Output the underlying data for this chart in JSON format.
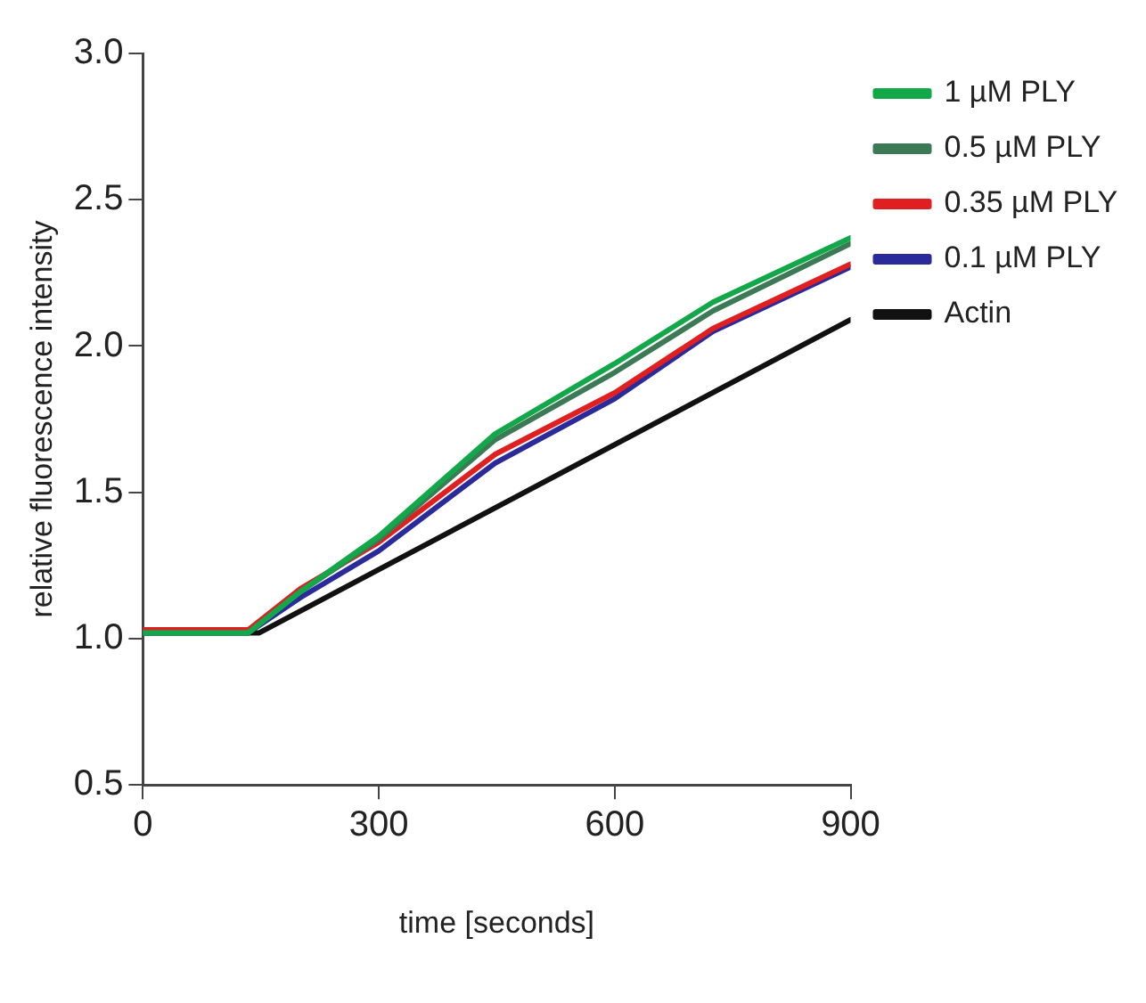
{
  "chart_data": {
    "type": "line",
    "xlabel": "time [seconds]",
    "ylabel": "relative fluorescence intensity",
    "xlim": [
      0,
      900
    ],
    "xticks": [
      0,
      300,
      600,
      900
    ],
    "ylim": [
      0.5,
      3.0
    ],
    "yticks": [
      {
        "value": 0.5,
        "label": "0.5"
      },
      {
        "value": 1.0,
        "label": "1.0"
      },
      {
        "value": 1.5,
        "label": "1.5"
      },
      {
        "value": 2.0,
        "label": "2.0"
      },
      {
        "value": 2.5,
        "label": "2.5"
      },
      {
        "value": 3.0,
        "label": "3.0"
      }
    ],
    "grid": false,
    "legend": "right",
    "marker": "none",
    "line_style": "solid",
    "series": [
      {
        "name": "1 µM PLY",
        "color": "#12a84a",
        "x": [
          0,
          134,
          200,
          300,
          448,
          600,
          725,
          900
        ],
        "values": [
          1.02,
          1.02,
          1.16,
          1.35,
          1.7,
          1.94,
          2.15,
          2.37
        ]
      },
      {
        "name": "0.5 µM PLY",
        "color": "#3c7a55",
        "x": [
          0,
          134,
          200,
          300,
          448,
          600,
          725,
          900
        ],
        "values": [
          1.02,
          1.02,
          1.16,
          1.34,
          1.68,
          1.91,
          2.12,
          2.35
        ]
      },
      {
        "name": "0.35 µM PLY",
        "color": "#e02020",
        "x": [
          0,
          134,
          200,
          300,
          448,
          600,
          725,
          900
        ],
        "values": [
          1.03,
          1.03,
          1.17,
          1.33,
          1.63,
          1.84,
          2.06,
          2.28
        ]
      },
      {
        "name": "0.1 µM PLY",
        "color": "#2a2a9a",
        "x": [
          0,
          134,
          200,
          300,
          448,
          600,
          725,
          900
        ],
        "values": [
          1.02,
          1.02,
          1.14,
          1.3,
          1.6,
          1.82,
          2.05,
          2.27
        ]
      },
      {
        "name": "Actin",
        "color": "#111111",
        "x": [
          0,
          148,
          900
        ],
        "values": [
          1.02,
          1.02,
          2.09
        ]
      }
    ]
  }
}
